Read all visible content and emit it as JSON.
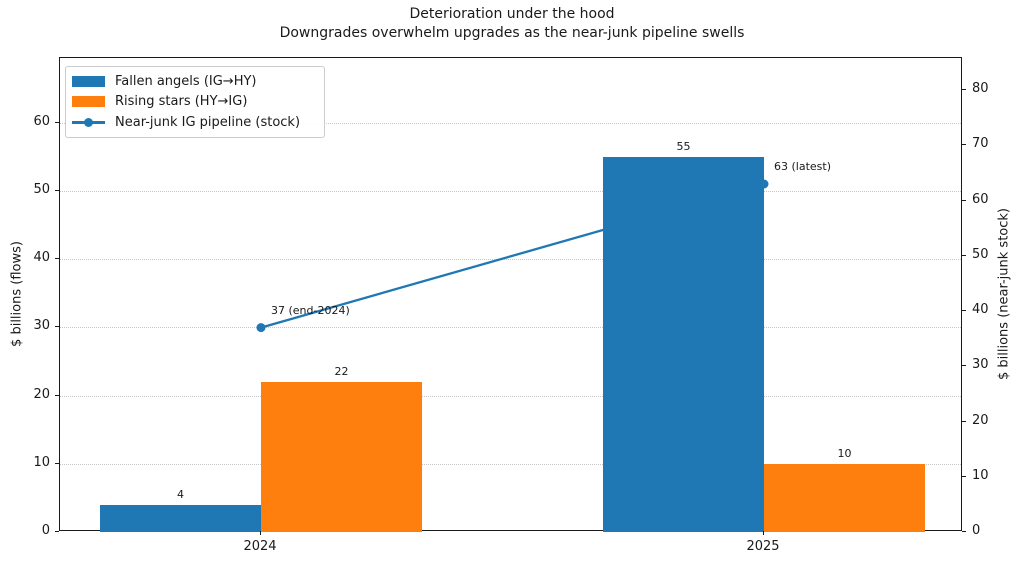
{
  "chart_data": {
    "type": "bar",
    "title": "Deterioration under the hood",
    "subtitle": "Downgrades overwhelm upgrades as the near-junk pipeline swells",
    "categories": [
      "2024",
      "2025"
    ],
    "series": [
      {
        "name": "Fallen angels (IG→HY)",
        "type": "bar",
        "axis": "left",
        "color": "#1f77b4",
        "values": [
          4,
          55
        ]
      },
      {
        "name": "Rising stars (HY→IG)",
        "type": "bar",
        "axis": "left",
        "color": "#ff7f0e",
        "values": [
          22,
          10
        ]
      },
      {
        "name": "Near-junk IG pipeline (stock)",
        "type": "line",
        "axis": "right",
        "color": "#1f77b4",
        "values": [
          37,
          63
        ],
        "point_labels": [
          "37 (end-2024)",
          "63 (latest)"
        ]
      }
    ],
    "left_axis": {
      "label": "$ billions (flows)",
      "ticks": [
        0,
        10,
        20,
        30,
        40,
        50,
        60
      ],
      "max": 69.5
    },
    "right_axis": {
      "label": "$ billions (near-junk stock)",
      "ticks": [
        0,
        10,
        20,
        30,
        40,
        50,
        60,
        70,
        80
      ],
      "max": 85.8
    },
    "legend_position": "upper left",
    "grid": {
      "axis": "y",
      "style": "dotted"
    }
  }
}
